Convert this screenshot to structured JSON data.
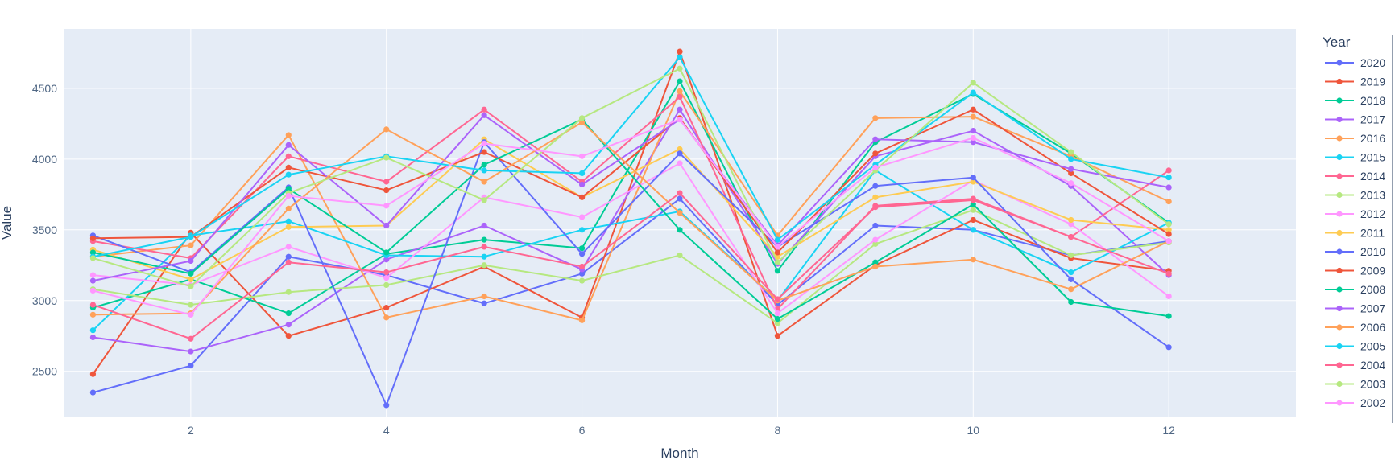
{
  "chart_data": {
    "type": "line",
    "xlabel": "Month",
    "ylabel": "Value",
    "xlim": [
      0.7,
      13.3
    ],
    "ylim": [
      2180,
      4920
    ],
    "xticks": [
      2,
      4,
      6,
      8,
      10,
      12
    ],
    "yticks": [
      2500,
      3000,
      3500,
      4000,
      4500
    ],
    "legend_title": "Year",
    "legend_position": "right",
    "plot_bgcolor": "#e5ecf6",
    "grid": true,
    "x": [
      1,
      2,
      3,
      4,
      5,
      6,
      7,
      8,
      9,
      10,
      11,
      12
    ],
    "series": [
      {
        "name": "2020",
        "color": "#636efa",
        "values": [
          2350,
          2540,
          3310,
          3180,
          2980,
          3190,
          3720,
          2970,
          3530,
          3500,
          3320,
          3420
        ]
      },
      {
        "name": "2019",
        "color": "#ef553b",
        "values": [
          2480,
          3480,
          2750,
          2950,
          3240,
          2880,
          4760,
          2750,
          3250,
          3570,
          3300,
          3210
        ]
      },
      {
        "name": "2018",
        "color": "#00cc96",
        "values": [
          2950,
          3150,
          2910,
          3330,
          3430,
          3370,
          4550,
          3210,
          4120,
          4460,
          4040,
          3550
        ]
      },
      {
        "name": "2017",
        "color": "#ab63fa",
        "values": [
          2740,
          2640,
          2830,
          3290,
          3530,
          3220,
          4350,
          3260,
          4020,
          4200,
          3810,
          3180
        ]
      },
      {
        "name": "2016",
        "color": "#ffa15a",
        "values": [
          3310,
          3390,
          4170,
          2880,
          3030,
          2860,
          4480,
          3460,
          4290,
          4300,
          4020,
          3700
        ]
      },
      {
        "name": "2015",
        "color": "#19d3f3",
        "values": [
          2790,
          3460,
          3560,
          3320,
          3310,
          3500,
          3630,
          3000,
          3920,
          3500,
          3200,
          3550
        ]
      },
      {
        "name": "2014",
        "color": "#ff6692",
        "values": [
          3420,
          3300,
          4020,
          3840,
          4350,
          3840,
          4440,
          2940,
          3670,
          3720,
          3450,
          3920
        ]
      },
      {
        "name": "2013",
        "color": "#b6e880",
        "values": [
          3080,
          2970,
          3060,
          3110,
          3250,
          3140,
          3320,
          2840,
          3400,
          3640,
          3320,
          3410
        ]
      },
      {
        "name": "2012",
        "color": "#ff97ff",
        "values": [
          3180,
          3110,
          3380,
          3160,
          3730,
          3590,
          3970,
          2910,
          3430,
          3850,
          3540,
          3030
        ]
      },
      {
        "name": "2011",
        "color": "#fecb52",
        "values": [
          3360,
          3150,
          3520,
          3530,
          4140,
          3730,
          4070,
          3310,
          3730,
          3840,
          3570,
          3500
        ]
      },
      {
        "name": "2010",
        "color": "#636efa",
        "values": [
          3460,
          3200,
          3800,
          2260,
          4120,
          3330,
          4040,
          3380,
          3810,
          3870,
          3150,
          2670
        ]
      },
      {
        "name": "2009",
        "color": "#ef553b",
        "values": [
          3440,
          3450,
          3940,
          3780,
          4050,
          3730,
          4290,
          3340,
          4040,
          4350,
          3900,
          3470
        ]
      },
      {
        "name": "2008",
        "color": "#00cc96",
        "values": [
          3340,
          3190,
          3790,
          3340,
          3960,
          4280,
          3500,
          2870,
          3270,
          3680,
          2990,
          2890
        ]
      },
      {
        "name": "2007",
        "color": "#ab63fa",
        "values": [
          3140,
          3280,
          4100,
          3530,
          4310,
          3820,
          4280,
          3390,
          4140,
          4120,
          3930,
          3800
        ]
      },
      {
        "name": "2006",
        "color": "#ffa15a",
        "values": [
          2900,
          2910,
          3650,
          4210,
          3840,
          4260,
          3620,
          3000,
          3240,
          3290,
          3080,
          3420
        ]
      },
      {
        "name": "2005",
        "color": "#19d3f3",
        "values": [
          3310,
          3450,
          3890,
          4020,
          3920,
          3900,
          4720,
          3430,
          3960,
          4470,
          4000,
          3870
        ]
      },
      {
        "name": "2004",
        "color": "#ff6692",
        "values": [
          2970,
          2730,
          3270,
          3200,
          3380,
          3240,
          3760,
          3010,
          3660,
          3710,
          3450,
          3190
        ]
      },
      {
        "name": "2003",
        "color": "#b6e880",
        "values": [
          3300,
          3100,
          3760,
          4010,
          3710,
          4290,
          4640,
          3270,
          3920,
          4540,
          4050,
          3540
        ]
      },
      {
        "name": "2002",
        "color": "#ff97ff",
        "values": [
          3070,
          2900,
          3740,
          3670,
          4110,
          4020,
          4280,
          3380,
          3940,
          4150,
          3830,
          3420
        ]
      }
    ]
  }
}
